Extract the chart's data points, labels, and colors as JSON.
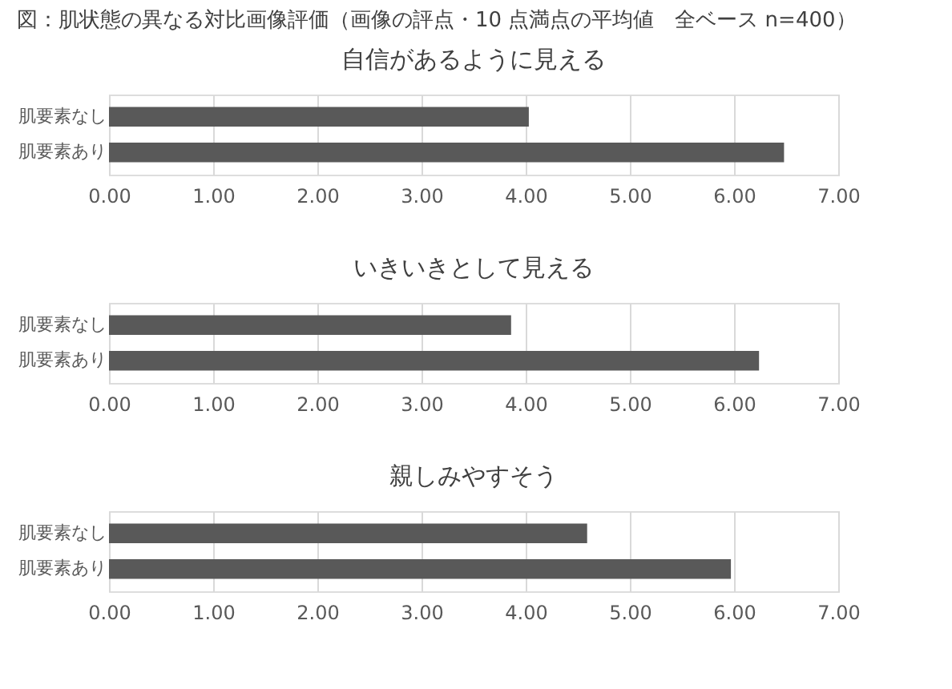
{
  "chart_data": [
    {
      "type": "bar",
      "orientation": "horizontal",
      "title": "自信があるように見える",
      "annotations": [
        "図：肌状態の異なる対比画像評価（画像の評点・10 点満点の平均値　全ベース n=400）"
      ],
      "categories": [
        "肌要素なし",
        "肌要素あり"
      ],
      "values": [
        4.03,
        6.48
      ],
      "color": "#595959",
      "xlim": [
        0,
        7
      ],
      "xticks": [
        {
          "value": 0,
          "label": "0.00"
        },
        {
          "value": 1,
          "label": "1.00"
        },
        {
          "value": 2,
          "label": "2.00"
        },
        {
          "value": 3,
          "label": "3.00"
        },
        {
          "value": 4,
          "label": "4.00"
        },
        {
          "value": 5,
          "label": "5.00"
        },
        {
          "value": 6,
          "label": "6.00"
        },
        {
          "value": 7,
          "label": "7.00"
        }
      ],
      "grid": "x"
    },
    {
      "type": "bar",
      "orientation": "horizontal",
      "title": "いきいきとして見える",
      "categories": [
        "肌要素なし",
        "肌要素あり"
      ],
      "values": [
        3.86,
        6.24
      ],
      "color": "#595959",
      "xlim": [
        0,
        7
      ],
      "xticks": [
        {
          "value": 0,
          "label": "0.00"
        },
        {
          "value": 1,
          "label": "1.00"
        },
        {
          "value": 2,
          "label": "2.00"
        },
        {
          "value": 3,
          "label": "3.00"
        },
        {
          "value": 4,
          "label": "4.00"
        },
        {
          "value": 5,
          "label": "5.00"
        },
        {
          "value": 6,
          "label": "6.00"
        },
        {
          "value": 7,
          "label": "7.00"
        }
      ],
      "grid": "x"
    },
    {
      "type": "bar",
      "orientation": "horizontal",
      "title": "親しみやすそう",
      "categories": [
        "肌要素なし",
        "肌要素あり"
      ],
      "values": [
        4.59,
        5.97
      ],
      "color": "#595959",
      "xlim": [
        0,
        7
      ],
      "xticks": [
        {
          "value": 0,
          "label": "0.00"
        },
        {
          "value": 1,
          "label": "1.00"
        },
        {
          "value": 2,
          "label": "2.00"
        },
        {
          "value": 3,
          "label": "3.00"
        },
        {
          "value": 4,
          "label": "4.00"
        },
        {
          "value": 5,
          "label": "5.00"
        },
        {
          "value": 6,
          "label": "6.00"
        },
        {
          "value": 7,
          "label": "7.00"
        }
      ],
      "grid": "x"
    }
  ]
}
